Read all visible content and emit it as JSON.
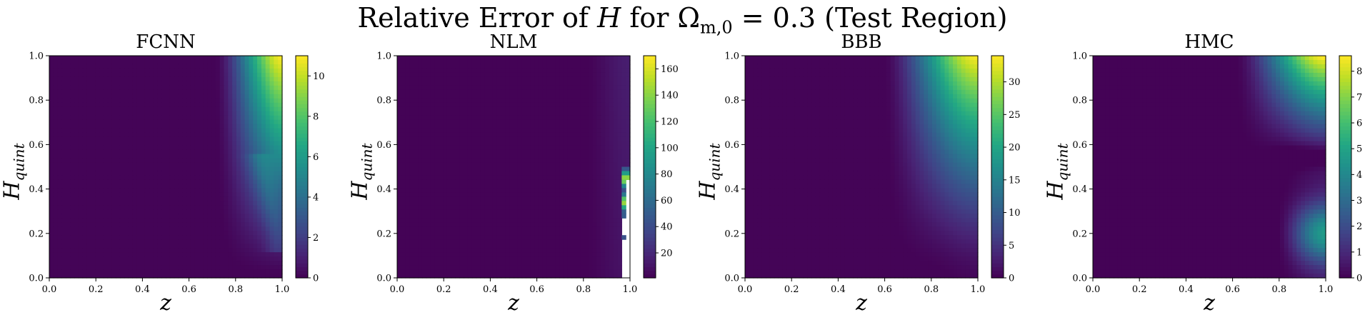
{
  "figure": {
    "title": "Relative Error of H for Ω_{m,0} = 0.3 (Test Region)",
    "title_plain": "Relative Error of ",
    "title_var": "H",
    "title_mid": " for Ω",
    "title_sub": "m,0",
    "title_end": " = 0.3 (Test Region)"
  },
  "chart_data": [
    {
      "type": "heatmap",
      "title": "FCNN",
      "xlabel": "z",
      "ylabel": "H_quint",
      "xlim": [
        0.0,
        1.0
      ],
      "ylim": [
        0.0,
        1.0
      ],
      "x_ticks": [
        "0.0",
        "0.2",
        "0.4",
        "0.6",
        "0.8",
        "1.0"
      ],
      "y_ticks": [
        "0.0",
        "0.2",
        "0.4",
        "0.6",
        "0.8",
        "1.0"
      ],
      "colorbar": {
        "min": 0,
        "max": 11,
        "ticks": [
          0,
          2,
          4,
          6,
          8,
          10
        ],
        "colormap": "viridis"
      },
      "pattern": {
        "peak_at": [
          1.0,
          1.0
        ],
        "peak_value": 11,
        "rise_start_z": 0.7,
        "ridge": "curved band from (1.0,0.2) up to (0.78,1.0)"
      }
    },
    {
      "type": "heatmap",
      "title": "NLM",
      "xlabel": "z",
      "ylabel": "H_quint",
      "xlim": [
        0.0,
        1.0
      ],
      "ylim": [
        0.0,
        1.0
      ],
      "x_ticks": [
        "0.0",
        "0.2",
        "0.4",
        "0.6",
        "0.8",
        "1.0"
      ],
      "y_ticks": [
        "0.0",
        "0.2",
        "0.4",
        "0.6",
        "0.8",
        "1.0"
      ],
      "colorbar": {
        "min": 1,
        "max": 170,
        "ticks": [
          20,
          40,
          60,
          80,
          100,
          120,
          140,
          160
        ],
        "colormap": "viridis"
      },
      "pattern": {
        "low_everywhere": true,
        "edge_spike_z": 0.97,
        "edge_spike_value": 160,
        "blank_region": "z > 0.97, H_quint < 0.45"
      }
    },
    {
      "type": "heatmap",
      "title": "BBB",
      "xlabel": "z",
      "ylabel": "H_quint",
      "xlim": [
        0.0,
        1.0
      ],
      "ylim": [
        0.0,
        1.0
      ],
      "x_ticks": [
        "0.0",
        "0.2",
        "0.4",
        "0.6",
        "0.8",
        "1.0"
      ],
      "y_ticks": [
        "0.0",
        "0.2",
        "0.4",
        "0.6",
        "0.8",
        "1.0"
      ],
      "colorbar": {
        "min": 0,
        "max": 34,
        "ticks": [
          0,
          5,
          10,
          15,
          20,
          25,
          30
        ],
        "colormap": "viridis"
      },
      "pattern": {
        "peak_at": [
          1.0,
          1.0
        ],
        "peak_value": 34,
        "rise_start_z": 0.6
      }
    },
    {
      "type": "heatmap",
      "title": "HMC",
      "xlabel": "z",
      "ylabel": "H_quint",
      "xlim": [
        0.0,
        1.0
      ],
      "ylim": [
        0.0,
        1.0
      ],
      "x_ticks": [
        "0.0",
        "0.2",
        "0.4",
        "0.6",
        "0.8",
        "1.0"
      ],
      "y_ticks": [
        "0.0",
        "0.2",
        "0.4",
        "0.6",
        "0.8",
        "1.0"
      ],
      "colorbar": {
        "min": 0,
        "max": 8.6,
        "ticks": [
          0,
          1,
          2,
          3,
          4,
          5,
          6,
          7,
          8
        ],
        "colormap": "viridis"
      },
      "pattern": {
        "peak_at": [
          1.0,
          1.0
        ],
        "peak_value": 8.6,
        "secondary_peak_at": [
          1.0,
          0.2
        ],
        "valley_at": [
          1.0,
          0.55
        ]
      }
    }
  ]
}
